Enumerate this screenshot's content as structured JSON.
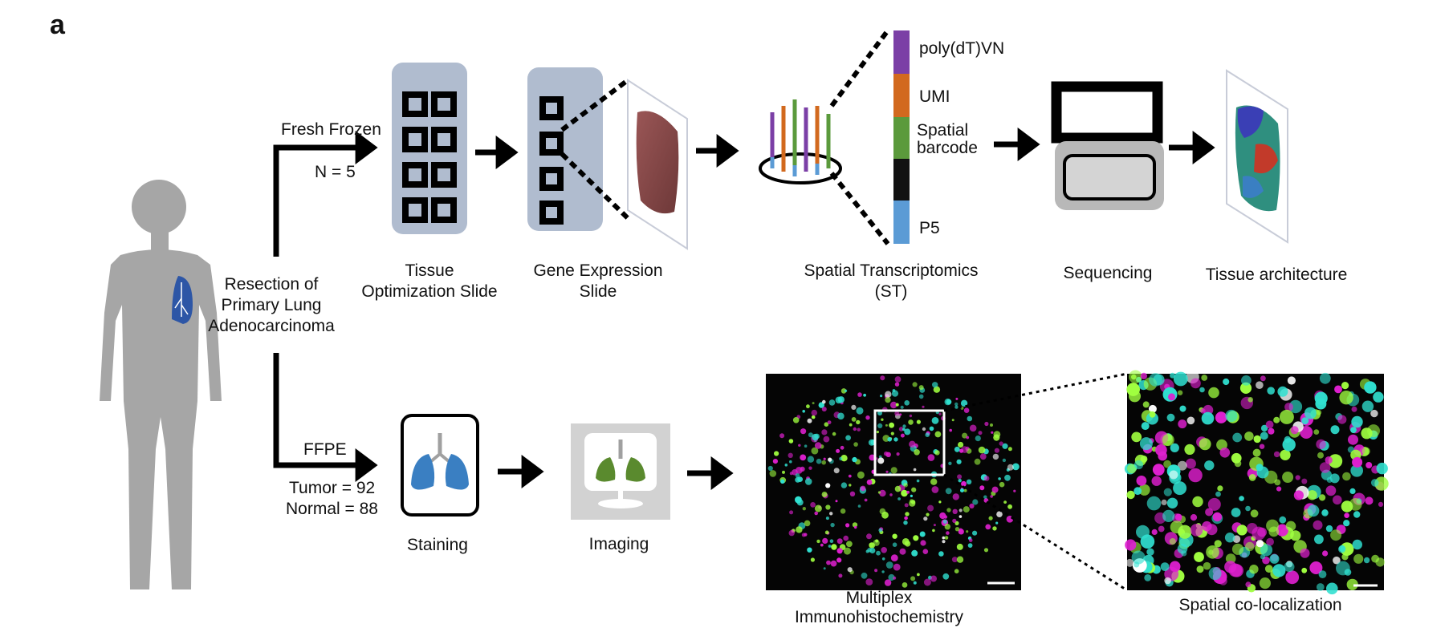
{
  "panel_label": "a",
  "labels": {
    "resection_line1": "Resection of",
    "resection_line2": "Primary Lung",
    "resection_line3": "Adenocarcinoma",
    "fresh_frozen": "Fresh Frozen",
    "n_frozen": "N = 5",
    "tissue_opt_line1": "Tissue",
    "tissue_opt_line2": "Optimization Slide",
    "gene_expr_line1": "Gene Expression",
    "gene_expr_line2": "Slide",
    "st_line1": "Spatial Transcriptomics",
    "st_line2": "(ST)",
    "sequencing": "Sequencing",
    "tissue_architecture": "Tissue architecture",
    "polydt": "poly(dT)VN",
    "umi": "UMI",
    "spatial_barcode_line1": "Spatial",
    "spatial_barcode_line2": "barcode",
    "p5": "P5",
    "ffpe": "FFPE",
    "tumor_count": "Tumor = 92",
    "normal_count": "Normal = 88",
    "staining": "Staining",
    "imaging": "Imaging",
    "mihc_line1": "Multiplex",
    "mihc_line2": "Immunohistochemistry",
    "colocalization": "Spatial co-localization"
  },
  "colors": {
    "arrow": "#000000",
    "human_silhouette": "#a6a6a6",
    "lung_blue": "#2d56a6",
    "slide_bg": "#b0bccf",
    "polydt": "#7b3fa6",
    "umi": "#d2691e",
    "spatial_barcode": "#5b9a3c",
    "black_segment": "#111111",
    "p5": "#5b9bd5",
    "staining_lung": "#3a7fc2",
    "imaging_lung": "#5a8a2e",
    "mihc_magenta": "#e020d0",
    "mihc_cyan": "#30e0d0",
    "mihc_green": "#a0ff40"
  }
}
